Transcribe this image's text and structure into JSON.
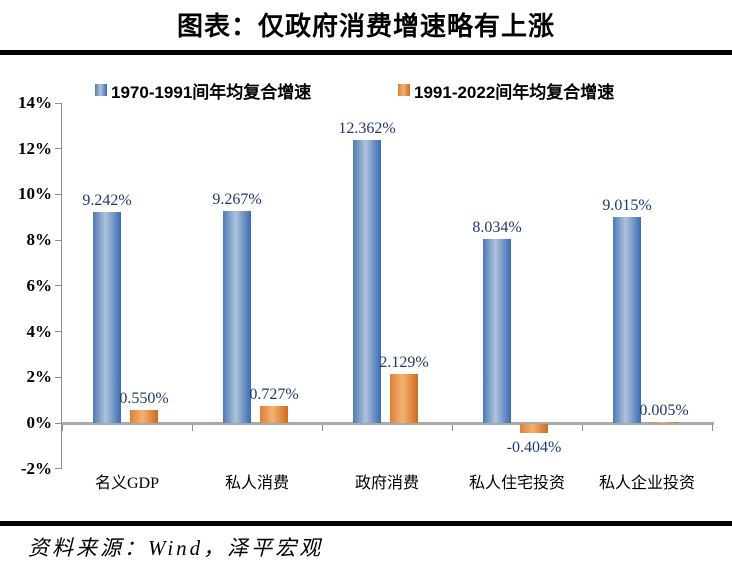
{
  "page": {
    "title": "图表：仅政府消费增速略有上涨",
    "source": "资料来源：Wind，泽平宏观"
  },
  "chart_data": {
    "type": "bar",
    "title": "图表：仅政府消费增速略有上涨",
    "categories": [
      "名义GDP",
      "私人消费",
      "政府消费",
      "私人住宅投资",
      "私人企业投资"
    ],
    "series": [
      {
        "name": "1970-1991间年均复合增速",
        "values": [
          9.242,
          9.267,
          12.362,
          8.034,
          9.015
        ],
        "labels": [
          "9.242%",
          "9.267%",
          "12.362%",
          "8.034%",
          "9.015%"
        ],
        "color_edge": "#4f79b6",
        "color_mid": "#aec3db",
        "color_dark": "#3a6ab3"
      },
      {
        "name": "1991-2022间年均复合增速",
        "values": [
          0.55,
          0.727,
          2.129,
          -0.404,
          0.005
        ],
        "labels": [
          "0.550%",
          "0.727%",
          "2.129%",
          "-0.404%",
          "0.005%"
        ],
        "color_edge": "#dd8134",
        "color_mid": "#f3b273",
        "color_dark": "#cd6b1d"
      }
    ],
    "xlabel": "",
    "ylabel": "",
    "ylim": [
      -2,
      14
    ],
    "ytick_step": 2,
    "ytick_labels": [
      "14%",
      "12%",
      "10%",
      "8%",
      "6%",
      "4%",
      "2%",
      "0%",
      "-2%"
    ],
    "grid": false,
    "legend_position": "top",
    "value_label_color": "#1f3a68",
    "axis_color": "#8f8f8f",
    "zero_line_color": "#a9a9a9"
  }
}
